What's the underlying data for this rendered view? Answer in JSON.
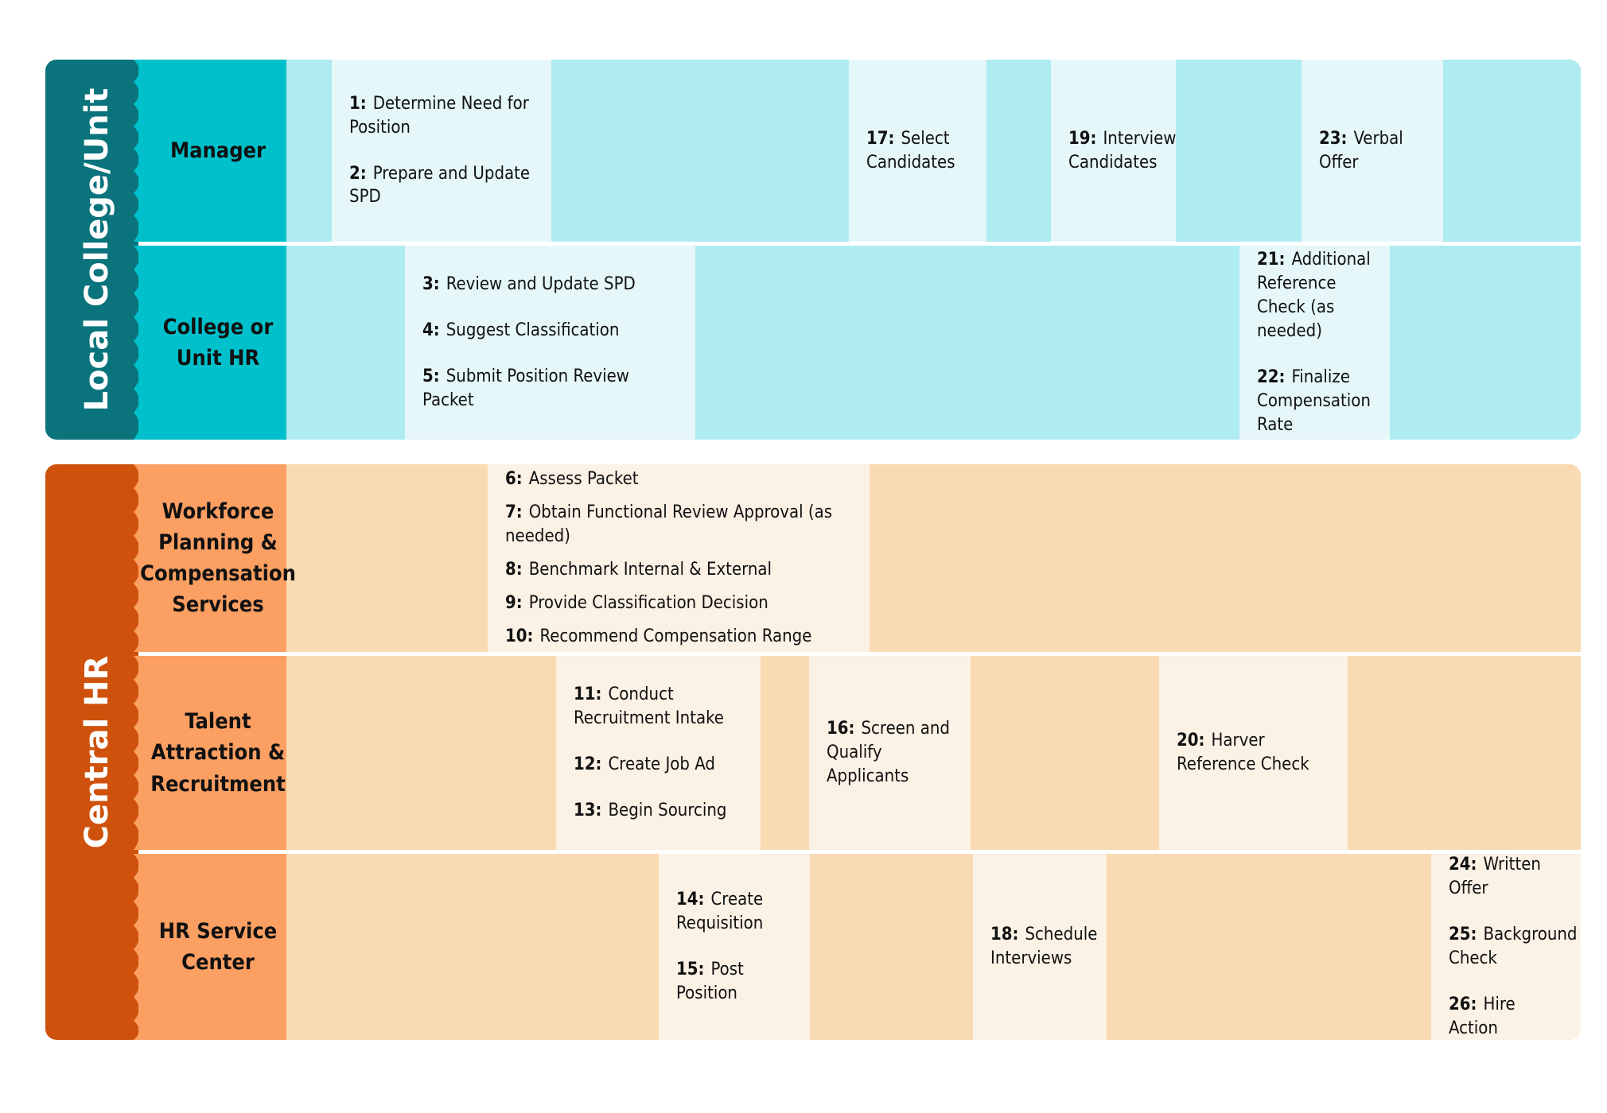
{
  "groups": {
    "local": {
      "title": "Local College/Unit",
      "lanes": {
        "manager": {
          "label": "Manager",
          "steps": [
            {
              "num": "1:",
              "text": "Determine Need for Position"
            },
            {
              "num": "2:",
              "text": "Prepare and Update SPD"
            },
            {
              "num": "17:",
              "text": "Select Candidates"
            },
            {
              "num": "19:",
              "text": "Interview Candidates"
            },
            {
              "num": "23:",
              "text": "Verbal Offer"
            }
          ]
        },
        "college_hr": {
          "label": "College or Unit HR",
          "steps": [
            {
              "num": "3:",
              "text": "Review and Update SPD"
            },
            {
              "num": "4:",
              "text": "Suggest Classification"
            },
            {
              "num": "5:",
              "text": "Submit Position Review Packet"
            },
            {
              "num": "21:",
              "text": "Additional Reference Check (as needed)"
            },
            {
              "num": "22:",
              "text": "Finalize Compensation Rate"
            }
          ]
        }
      }
    },
    "central": {
      "title": "Central HR",
      "lanes": {
        "workforce": {
          "label": "Workforce Planning & Compensation Services",
          "steps": [
            {
              "num": "6:",
              "text": "Assess Packet"
            },
            {
              "num": "7:",
              "text": "Obtain Functional Review Approval (as needed)"
            },
            {
              "num": "8:",
              "text": "Benchmark Internal & External"
            },
            {
              "num": "9:",
              "text": "Provide Classification Decision"
            },
            {
              "num": "10:",
              "text": "Recommend Compensation Range"
            }
          ]
        },
        "talent": {
          "label": "Talent Attraction & Recruitment",
          "steps": [
            {
              "num": "11:",
              "text": "Conduct Recruitment Intake"
            },
            {
              "num": "12:",
              "text": "Create Job Ad"
            },
            {
              "num": "13:",
              "text": "Begin Sourcing"
            },
            {
              "num": "16:",
              "text": "Screen and Qualify Applicants"
            },
            {
              "num": "20:",
              "text": "Harver Reference Check"
            }
          ]
        },
        "service": {
          "label": "HR Service Center",
          "steps": [
            {
              "num": "14:",
              "text": "Create Requisition"
            },
            {
              "num": "15:",
              "text": "Post Position"
            },
            {
              "num": "18:",
              "text": "Schedule Interviews"
            },
            {
              "num": "24:",
              "text": "Written Offer"
            },
            {
              "num": "25:",
              "text": "Background Check"
            },
            {
              "num": "26:",
              "text": "Hire Action"
            }
          ]
        }
      }
    }
  },
  "colors": {
    "local_dark": "#0b737c",
    "local_label": "#00c1cb",
    "local_lane": "#aeecf1",
    "local_box": "#e5f7f8",
    "central_dark": "#cf520c",
    "central_label": "#fb9f62",
    "central_lane": "#f9dbb3",
    "central_box": "#fcf1e5"
  }
}
